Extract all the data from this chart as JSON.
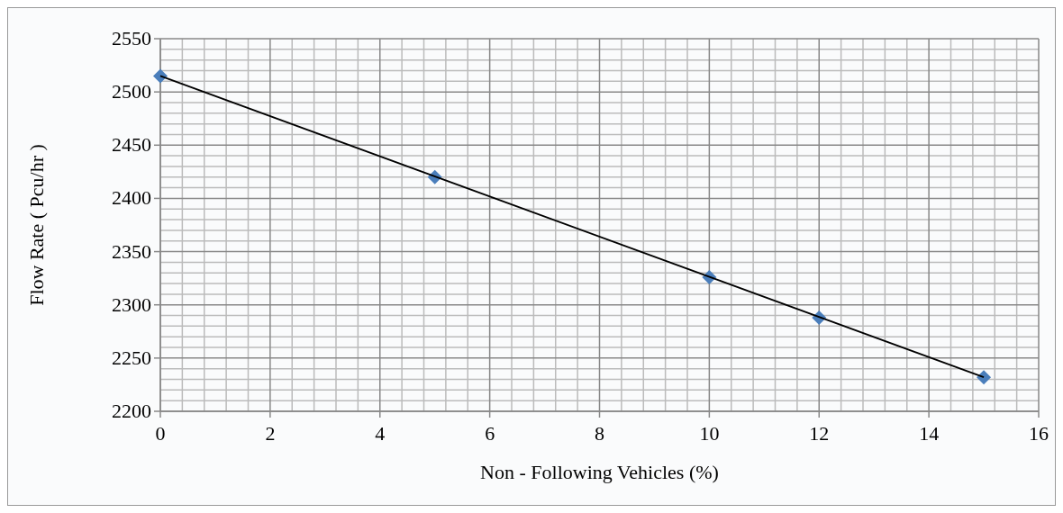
{
  "chart_data": {
    "type": "scatter",
    "xlabel": "Non - Following Vehicles (%)",
    "ylabel": "Flow Rate ( Pcu/hr )",
    "series": [
      {
        "color": "#4a7ebb",
        "marker": "diamond",
        "x": [
          0,
          5,
          10,
          12,
          15
        ],
        "values": [
          2515,
          2420,
          2326,
          2288,
          2232
        ]
      },
      {
        "type": "line",
        "color": "#000000",
        "marker": "none",
        "line_style": "solid",
        "x": [
          0,
          15
        ],
        "values": [
          2515,
          2232
        ]
      }
    ],
    "xlim": [
      0,
      16
    ],
    "xticks": [
      0,
      2,
      4,
      6,
      8,
      10,
      12,
      14,
      16
    ],
    "ylim": [
      2200,
      2550
    ],
    "yticks": [
      2200,
      2250,
      2300,
      2350,
      2400,
      2450,
      2500,
      2550
    ],
    "grid": true
  }
}
